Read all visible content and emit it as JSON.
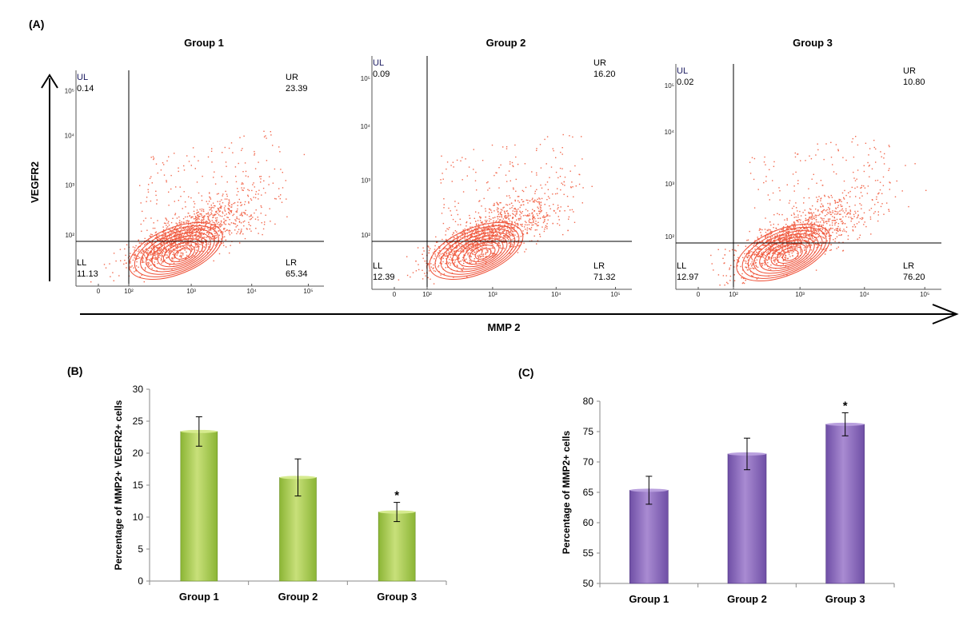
{
  "colors": {
    "dots": "#f26a4f",
    "contour": "#ef4f36",
    "green_light": "#c8e07a",
    "green_dark": "#8bb535",
    "purple_light": "#a98bd2",
    "purple_dark": "#6f4fa6"
  },
  "panel_a": {
    "label": "(A)",
    "y_axis_label": "VEGFR2",
    "x_axis_label": "MMP 2",
    "quadrant_names": {
      "UL": "UL",
      "UR": "UR",
      "LL": "LL",
      "LR": "LR"
    },
    "x_ticks": [
      "0",
      "10²",
      "10³",
      "10⁴",
      "10⁵"
    ],
    "y_ticks": [
      "10²",
      "10³",
      "10⁴",
      "10⁵"
    ],
    "plots": [
      {
        "title": "Group 1",
        "UL": "0.14",
        "UR": "23.39",
        "LL": "11.13",
        "LR": "65.34"
      },
      {
        "title": "Group 2",
        "UL": "0.09",
        "UR": "16.20",
        "LL": "12.39",
        "LR": "71.32"
      },
      {
        "title": "Group 3",
        "UL": "0.02",
        "UR": "10.80",
        "LL": "12.97",
        "LR": "76.20"
      }
    ]
  },
  "chart_data": [
    {
      "panel": "(B)",
      "type": "bar",
      "categories": [
        "Group 1",
        "Group 2",
        "Group 3"
      ],
      "values": [
        23.39,
        16.2,
        10.8
      ],
      "errors": [
        2.3,
        2.9,
        1.5
      ],
      "annotations": [
        "",
        "",
        "*"
      ],
      "ylabel": "Percentage of MMP2+ VEGFR2+ cells",
      "ylim": [
        0,
        30
      ],
      "yticks": [
        0,
        5,
        10,
        15,
        20,
        25,
        30
      ],
      "grid": false
    },
    {
      "panel": "(C)",
      "type": "bar",
      "categories": [
        "Group 1",
        "Group 2",
        "Group 3"
      ],
      "values": [
        65.34,
        71.32,
        76.2
      ],
      "errors": [
        2.3,
        2.6,
        1.9
      ],
      "annotations": [
        "",
        "",
        "*"
      ],
      "ylabel": "Percentage of MMP2+ cells",
      "ylim": [
        50,
        80
      ],
      "yticks": [
        50,
        55,
        60,
        65,
        70,
        75,
        80
      ],
      "grid": false
    }
  ]
}
